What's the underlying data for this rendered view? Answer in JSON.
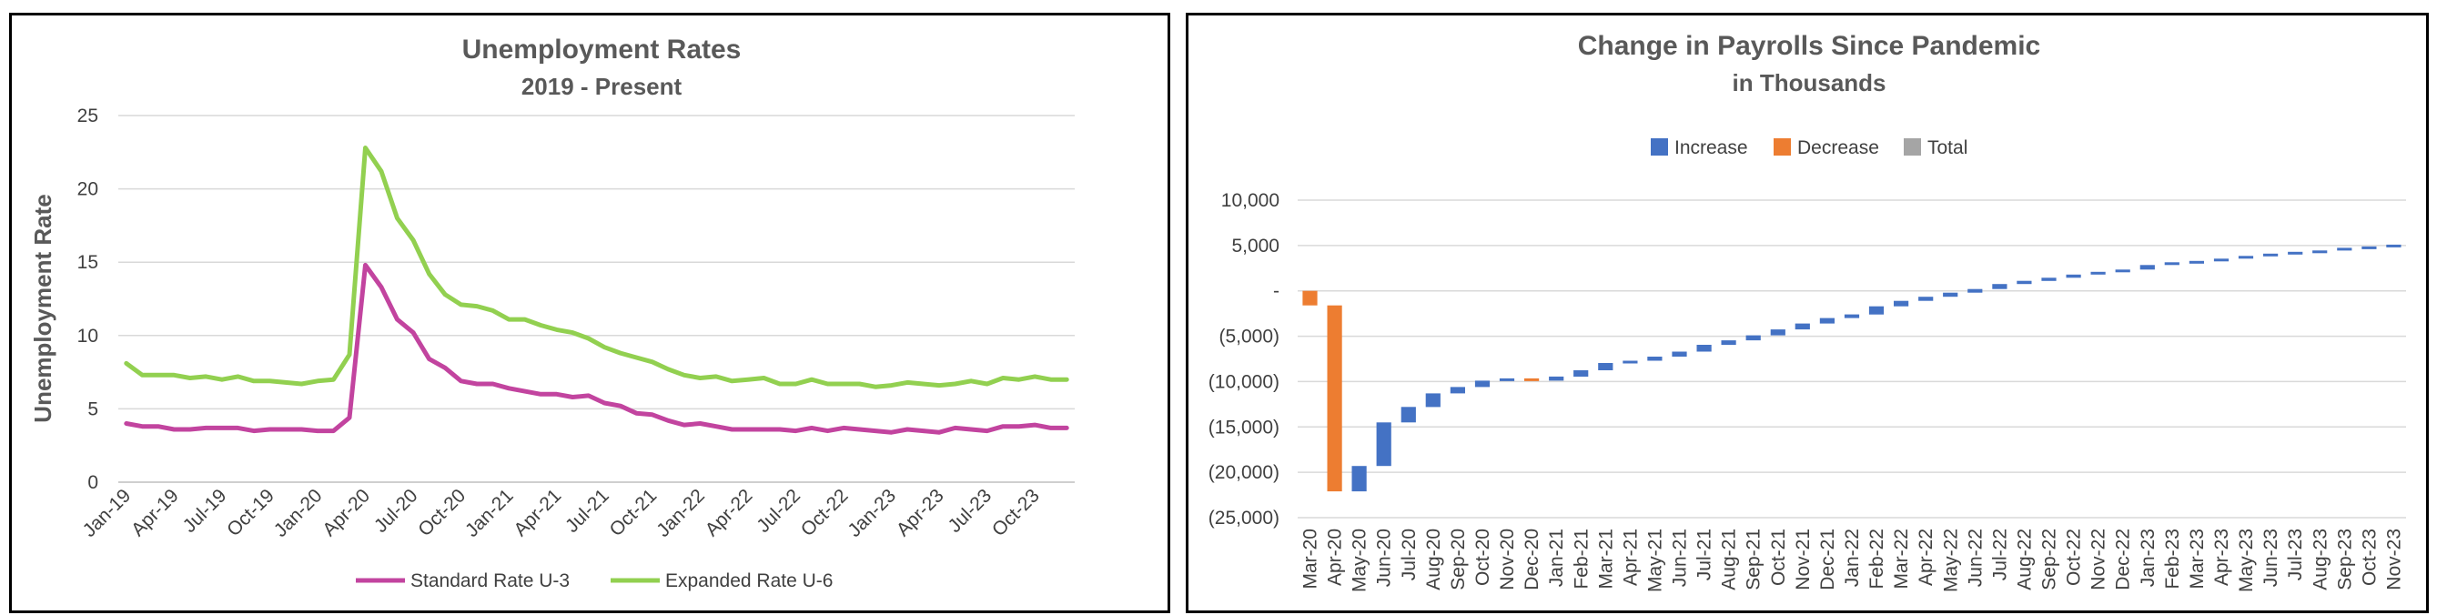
{
  "chart_data": [
    {
      "type": "line",
      "title": "Unemployment Rates",
      "subtitle": "2019 - Present",
      "xlabel": "",
      "ylabel": "Unemployment Rate",
      "ylim": [
        0,
        25
      ],
      "yticks": [
        "0",
        "5",
        "10",
        "15",
        "20",
        "25"
      ],
      "x": [
        "Jan-19",
        "Feb-19",
        "Mar-19",
        "Apr-19",
        "May-19",
        "Jun-19",
        "Jul-19",
        "Aug-19",
        "Sep-19",
        "Oct-19",
        "Nov-19",
        "Dec-19",
        "Jan-20",
        "Feb-20",
        "Mar-20",
        "Apr-20",
        "May-20",
        "Jun-20",
        "Jul-20",
        "Aug-20",
        "Sep-20",
        "Oct-20",
        "Nov-20",
        "Dec-20",
        "Jan-21",
        "Feb-21",
        "Mar-21",
        "Apr-21",
        "May-21",
        "Jun-21",
        "Jul-21",
        "Aug-21",
        "Sep-21",
        "Oct-21",
        "Nov-21",
        "Dec-21",
        "Jan-22",
        "Feb-22",
        "Mar-22",
        "Apr-22",
        "May-22",
        "Jun-22",
        "Jul-22",
        "Aug-22",
        "Sep-22",
        "Oct-22",
        "Nov-22",
        "Dec-22",
        "Jan-23",
        "Feb-23",
        "Mar-23",
        "Apr-23",
        "May-23",
        "Jun-23",
        "Jul-23",
        "Aug-23",
        "Sep-23",
        "Oct-23",
        "Nov-23",
        "Dec-23"
      ],
      "xtick_labels": [
        "Jan-19",
        "Apr-19",
        "Jul-19",
        "Oct-19",
        "Jan-20",
        "Apr-20",
        "Jul-20",
        "Oct-20",
        "Jan-21",
        "Apr-21",
        "Jul-21",
        "Oct-21",
        "Jan-22",
        "Apr-22",
        "Jul-22",
        "Oct-22",
        "Jan-23",
        "Apr-23",
        "Jul-23",
        "Oct-23"
      ],
      "grid": true,
      "legend_position": "bottom",
      "series": [
        {
          "name": "Standard Rate U-3",
          "color": "#C2449F",
          "values": [
            4.0,
            3.8,
            3.8,
            3.6,
            3.6,
            3.7,
            3.7,
            3.7,
            3.5,
            3.6,
            3.6,
            3.6,
            3.5,
            3.5,
            4.4,
            14.8,
            13.3,
            11.1,
            10.2,
            8.4,
            7.8,
            6.9,
            6.7,
            6.7,
            6.4,
            6.2,
            6.0,
            6.0,
            5.8,
            5.9,
            5.4,
            5.2,
            4.7,
            4.6,
            4.2,
            3.9,
            4.0,
            3.8,
            3.6,
            3.6,
            3.6,
            3.6,
            3.5,
            3.7,
            3.5,
            3.7,
            3.6,
            3.5,
            3.4,
            3.6,
            3.5,
            3.4,
            3.7,
            3.6,
            3.5,
            3.8,
            3.8,
            3.9,
            3.7,
            3.7
          ]
        },
        {
          "name": "Expanded Rate U-6",
          "color": "#92D050",
          "values": [
            8.1,
            7.3,
            7.3,
            7.3,
            7.1,
            7.2,
            7.0,
            7.2,
            6.9,
            6.9,
            6.8,
            6.7,
            6.9,
            7.0,
            8.7,
            22.8,
            21.2,
            18.0,
            16.5,
            14.2,
            12.8,
            12.1,
            12.0,
            11.7,
            11.1,
            11.1,
            10.7,
            10.4,
            10.2,
            9.8,
            9.2,
            8.8,
            8.5,
            8.2,
            7.7,
            7.3,
            7.1,
            7.2,
            6.9,
            7.0,
            7.1,
            6.7,
            6.7,
            7.0,
            6.7,
            6.7,
            6.7,
            6.5,
            6.6,
            6.8,
            6.7,
            6.6,
            6.7,
            6.9,
            6.7,
            7.1,
            7.0,
            7.2,
            7.0,
            7.0
          ]
        }
      ]
    },
    {
      "type": "bar",
      "subtype": "waterfall",
      "title": "Change in Payrolls Since Pandemic",
      "subtitle": "in Thousands",
      "xlabel": "",
      "ylabel": "",
      "ylim": [
        -25000,
        10000
      ],
      "yticks": [
        "10,000",
        "5,000",
        "-",
        "(5,000)",
        "(10,000)",
        "(15,000)",
        "(20,000)",
        "(25,000)"
      ],
      "grid": true,
      "legend_position": "top",
      "legend": [
        {
          "label": "Increase",
          "color": "#4472C4"
        },
        {
          "label": "Decrease",
          "color": "#ED7D31"
        },
        {
          "label": "Total",
          "color": "#A5A5A5"
        }
      ],
      "categories": [
        "Mar-20",
        "Apr-20",
        "May-20",
        "Jun-20",
        "Jul-20",
        "Aug-20",
        "Sep-20",
        "Oct-20",
        "Nov-20",
        "Dec-20",
        "Jan-21",
        "Feb-21",
        "Mar-21",
        "Apr-21",
        "May-21",
        "Jun-21",
        "Jul-21",
        "Aug-21",
        "Sep-21",
        "Oct-21",
        "Nov-21",
        "Dec-21",
        "Jan-22",
        "Feb-22",
        "Mar-22",
        "Apr-22",
        "May-22",
        "Jun-22",
        "Jul-22",
        "Aug-22",
        "Sep-22",
        "Oct-22",
        "Nov-22",
        "Dec-22",
        "Jan-23",
        "Feb-23",
        "Mar-23",
        "Apr-23",
        "May-23",
        "Jun-23",
        "Jul-23",
        "Aug-23",
        "Sep-23",
        "Oct-23",
        "Nov-23"
      ],
      "values": [
        -1600,
        -20500,
        2800,
        4800,
        1700,
        1500,
        700,
        700,
        250,
        -250,
        450,
        700,
        800,
        250,
        450,
        550,
        750,
        500,
        550,
        650,
        650,
        600,
        400,
        900,
        600,
        450,
        450,
        400,
        550,
        350,
        350,
        350,
        300,
        250,
        500,
        300,
        150,
        250,
        300,
        250,
        200,
        150,
        300,
        150,
        200
      ]
    }
  ]
}
